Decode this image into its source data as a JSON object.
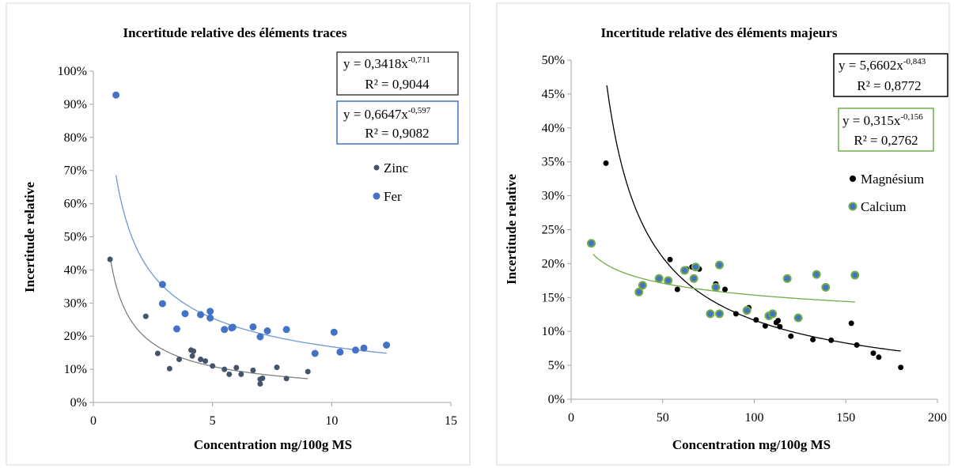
{
  "chart_data": [
    {
      "type": "scatter",
      "title": "Incertitude relative des éléments traces",
      "xlabel": "Concentration mg/100g MS",
      "ylabel": "Incertitude relative",
      "xlim": [
        0,
        15
      ],
      "ylim": [
        0,
        1.0
      ],
      "x_ticks": [
        0,
        5,
        10,
        15
      ],
      "y_ticks": [
        0,
        0.1,
        0.2,
        0.3,
        0.4,
        0.5,
        0.6,
        0.7,
        0.8,
        0.9,
        1.0
      ],
      "x_tick_labels": [
        "0",
        "5",
        "10",
        "15"
      ],
      "y_tick_labels": [
        "0%",
        "10%",
        "20%",
        "30%",
        "40%",
        "50%",
        "60%",
        "70%",
        "80%",
        "90%",
        "100%"
      ],
      "grid": false,
      "legend_position": "right",
      "series": [
        {
          "name": "Zinc",
          "color": "#44546a",
          "marker_edge": "#44546a",
          "trend": {
            "a": 0.3418,
            "b": -0.711,
            "x_range": [
              0.7,
              9.0
            ],
            "color": "#808080"
          },
          "equation": {
            "y_prefix": "y = 0,3418x",
            "exponent": "-0,711",
            "r2": "R² = 0,9044",
            "border": "#404040"
          },
          "points": [
            [
              0.7,
              0.432
            ],
            [
              2.2,
              0.26
            ],
            [
              2.7,
              0.148
            ],
            [
              3.2,
              0.102
            ],
            [
              3.6,
              0.13
            ],
            [
              4.1,
              0.158
            ],
            [
              4.2,
              0.155
            ],
            [
              4.15,
              0.14
            ],
            [
              4.5,
              0.13
            ],
            [
              4.7,
              0.125
            ],
            [
              5.0,
              0.11
            ],
            [
              5.5,
              0.1
            ],
            [
              5.7,
              0.085
            ],
            [
              6.0,
              0.105
            ],
            [
              6.2,
              0.085
            ],
            [
              6.7,
              0.097
            ],
            [
              7.0,
              0.07
            ],
            [
              7.0,
              0.056
            ],
            [
              7.1,
              0.073
            ],
            [
              7.7,
              0.106
            ],
            [
              8.1,
              0.072
            ],
            [
              9.0,
              0.093
            ]
          ]
        },
        {
          "name": "Fer",
          "color": "#4472c4",
          "marker_edge": "#4472c4",
          "trend": {
            "a": 0.6647,
            "b": -0.597,
            "x_range": [
              0.95,
              12.3
            ],
            "color": "#6f97d8"
          },
          "equation": {
            "y_prefix": "y = 0,6647x",
            "exponent": "-0,597",
            "r2": "R² = 0,9082",
            "border": "#4472c4"
          },
          "points": [
            [
              0.95,
              0.928
            ],
            [
              2.9,
              0.356
            ],
            [
              2.9,
              0.298
            ],
            [
              3.5,
              0.222
            ],
            [
              3.85,
              0.268
            ],
            [
              4.5,
              0.265
            ],
            [
              4.9,
              0.275
            ],
            [
              4.9,
              0.255
            ],
            [
              5.5,
              0.22
            ],
            [
              5.8,
              0.225
            ],
            [
              5.85,
              0.227
            ],
            [
              6.7,
              0.228
            ],
            [
              7.0,
              0.198
            ],
            [
              7.3,
              0.216
            ],
            [
              8.1,
              0.22
            ],
            [
              9.3,
              0.148
            ],
            [
              10.1,
              0.212
            ],
            [
              10.35,
              0.152
            ],
            [
              11.0,
              0.158
            ],
            [
              11.35,
              0.164
            ],
            [
              12.3,
              0.173
            ]
          ]
        }
      ]
    },
    {
      "type": "scatter",
      "title": "Incertitude relative des éléments majeurs",
      "xlabel": "Concentration mg/100g MS",
      "ylabel": "Incertitude relative",
      "xlim": [
        0,
        200
      ],
      "ylim": [
        0,
        0.5
      ],
      "x_ticks": [
        0,
        50,
        100,
        150,
        200
      ],
      "y_ticks": [
        0,
        0.05,
        0.1,
        0.15,
        0.2,
        0.25,
        0.3,
        0.35,
        0.4,
        0.45,
        0.5
      ],
      "x_tick_labels": [
        "0",
        "50",
        "100",
        "150",
        "200"
      ],
      "y_tick_labels": [
        "0%",
        "5%",
        "10%",
        "15%",
        "20%",
        "25%",
        "30%",
        "35%",
        "40%",
        "45%",
        "50%"
      ],
      "grid": false,
      "legend_position": "right",
      "series": [
        {
          "name": "Magnésium",
          "color": "#000000",
          "marker_edge": "#000000",
          "trend": {
            "a": 5.6602,
            "b": -0.843,
            "x_range": [
              19.5,
              180
            ],
            "color": "#000000"
          },
          "equation": {
            "y_prefix": "y = 5,6602x",
            "exponent": "-0,843",
            "r2": "R² = 0,8772",
            "border": "#000000"
          },
          "points": [
            [
              19,
              0.348
            ],
            [
              54,
              0.206
            ],
            [
              58,
              0.162
            ],
            [
              63,
              0.192
            ],
            [
              66,
              0.195
            ],
            [
              70,
              0.192
            ],
            [
              79,
              0.17
            ],
            [
              84,
              0.162
            ],
            [
              90,
              0.126
            ],
            [
              97,
              0.135
            ],
            [
              101,
              0.117
            ],
            [
              106,
              0.108
            ],
            [
              112,
              0.113
            ],
            [
              113,
              0.116
            ],
            [
              114,
              0.107
            ],
            [
              120,
              0.093
            ],
            [
              132,
              0.088
            ],
            [
              142,
              0.087
            ],
            [
              153,
              0.112
            ],
            [
              156,
              0.08
            ],
            [
              165,
              0.068
            ],
            [
              168,
              0.062
            ],
            [
              180,
              0.047
            ]
          ]
        },
        {
          "name": "Calcium",
          "color": "#4472c4",
          "marker_edge": "#70ad47",
          "trend": {
            "a": 0.315,
            "b": -0.156,
            "x_range": [
              12,
              155
            ],
            "color": "#70ad47"
          },
          "equation": {
            "y_prefix": "y = 0,315x",
            "exponent": "-0,156",
            "r2": "R² = 0,2762",
            "border": "#70ad47"
          },
          "points": [
            [
              11,
              0.23
            ],
            [
              37,
              0.158
            ],
            [
              39,
              0.168
            ],
            [
              48,
              0.178
            ],
            [
              53,
              0.175
            ],
            [
              62,
              0.19
            ],
            [
              67,
              0.178
            ],
            [
              68,
              0.195
            ],
            [
              76,
              0.126
            ],
            [
              79,
              0.165
            ],
            [
              81,
              0.126
            ],
            [
              81,
              0.198
            ],
            [
              96,
              0.131
            ],
            [
              108,
              0.123
            ],
            [
              110,
              0.126
            ],
            [
              118,
              0.178
            ],
            [
              124,
              0.12
            ],
            [
              134,
              0.184
            ],
            [
              139,
              0.165
            ],
            [
              155,
              0.183
            ]
          ]
        }
      ]
    }
  ]
}
